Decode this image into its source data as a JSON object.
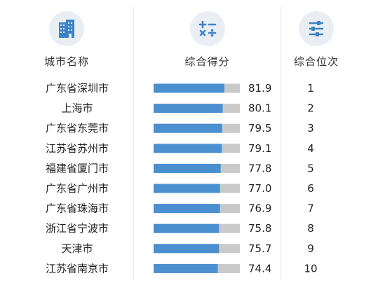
{
  "columns": {
    "city": "城市名称",
    "score": "综合得分",
    "rank": "综合位次"
  },
  "icons": {
    "city": "building-icon",
    "score": "calculator-icon",
    "rank": "sliders-icon"
  },
  "colors": {
    "bar_fill": "#4a8fd0",
    "bar_track": "#c9c9c9",
    "icon_bg": "#e8eef3",
    "icon_fg": "#3d82c4"
  },
  "chart_data": {
    "type": "bar",
    "orientation": "horizontal",
    "categories": [
      "广东省深圳市",
      "上海市",
      "广东省东莞市",
      "江苏省苏州市",
      "福建省厦门市",
      "广东省广州市",
      "广东省珠海市",
      "浙江省宁波市",
      "天津市",
      "江苏省南京市"
    ],
    "values": [
      81.9,
      80.1,
      79.5,
      79.1,
      77.8,
      77.0,
      76.9,
      75.8,
      75.7,
      74.4
    ],
    "value_labels": [
      "81.9",
      "80.1",
      "79.5",
      "79.1",
      "77.8",
      "77.0",
      "76.9",
      "75.8",
      "75.7",
      "74.4"
    ],
    "ranks": [
      "1",
      "2",
      "3",
      "4",
      "5",
      "6",
      "7",
      "8",
      "9",
      "10"
    ],
    "xlim": [
      0,
      100
    ],
    "grid": false,
    "legend": "none"
  }
}
